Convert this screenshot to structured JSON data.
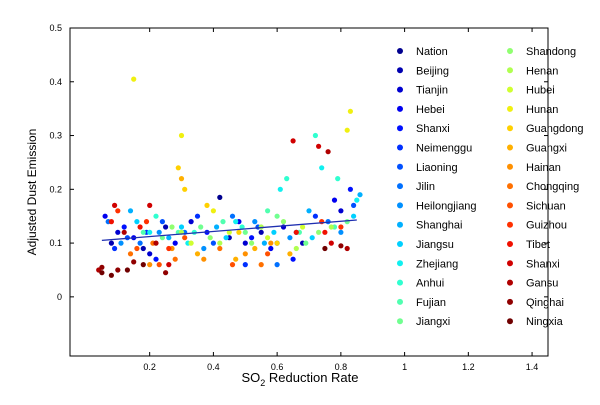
{
  "chart_data": {
    "type": "scatter",
    "xlabel_main": "SO",
    "xlabel_sub": "2",
    "xlabel_rest": " Reduction Rate",
    "ylabel": "Adjusted Dust Emission",
    "xlim": [
      -0.05,
      1.45
    ],
    "ylim": [
      -0.11,
      0.5
    ],
    "xticks": [
      {
        "v": 0.2,
        "label": "0.2"
      },
      {
        "v": 0.4,
        "label": "0.4"
      },
      {
        "v": 0.6,
        "label": "0.6"
      },
      {
        "v": 0.8,
        "label": "0.8"
      },
      {
        "v": 1.0,
        "label": "1"
      },
      {
        "v": 1.2,
        "label": "1.2"
      },
      {
        "v": 1.4,
        "label": "1.4"
      }
    ],
    "yticks": [
      {
        "v": 0.0,
        "label": "0"
      },
      {
        "v": 0.1,
        "label": "0.1"
      },
      {
        "v": 0.2,
        "label": "0.2"
      },
      {
        "v": 0.3,
        "label": "0.3"
      },
      {
        "v": 0.4,
        "label": "0.4"
      },
      {
        "v": 0.5,
        "label": "0.5"
      }
    ],
    "grid": false,
    "legend_position": "right",
    "fit_line": {
      "x": [
        0.05,
        0.85
      ],
      "y": [
        0.105,
        0.143
      ],
      "color": "#1f2fb0"
    },
    "series": [
      {
        "name": "Nation",
        "color": "#00008f",
        "points": [
          [
            0.42,
            0.185
          ]
        ]
      },
      {
        "name": "Beijing",
        "color": "#0000b0",
        "points": [
          [
            0.08,
            0.1
          ],
          [
            0.18,
            0.09
          ],
          [
            0.25,
            0.13
          ],
          [
            0.45,
            0.11
          ],
          [
            0.55,
            0.12
          ],
          [
            0.68,
            0.1
          ]
        ]
      },
      {
        "name": "Tianjin",
        "color": "#0000d0",
        "points": [
          [
            0.1,
            0.12
          ],
          [
            0.2,
            0.08
          ],
          [
            0.33,
            0.14
          ],
          [
            0.5,
            0.1
          ],
          [
            0.62,
            0.13
          ],
          [
            0.8,
            0.16
          ]
        ]
      },
      {
        "name": "Hebei",
        "color": "#0000f0",
        "points": [
          [
            0.06,
            0.15
          ],
          [
            0.15,
            0.11
          ],
          [
            0.28,
            0.1
          ],
          [
            0.48,
            0.14
          ],
          [
            0.58,
            0.09
          ],
          [
            0.78,
            0.18
          ]
        ]
      },
      {
        "name": "Shanxi",
        "color": "#0010ff",
        "points": [
          [
            0.12,
            0.13
          ],
          [
            0.22,
            0.07
          ],
          [
            0.38,
            0.12
          ],
          [
            0.52,
            0.11
          ],
          [
            0.65,
            0.07
          ],
          [
            0.83,
            0.2
          ]
        ]
      },
      {
        "name": "Neimenggu",
        "color": "#0030ff",
        "points": [
          [
            0.09,
            0.09
          ],
          [
            0.19,
            0.12
          ],
          [
            0.35,
            0.15
          ],
          [
            0.5,
            0.06
          ],
          [
            0.6,
            0.1
          ],
          [
            0.72,
            0.15
          ]
        ]
      },
      {
        "name": "Liaoning",
        "color": "#0050ff",
        "points": [
          [
            0.13,
            0.11
          ],
          [
            0.24,
            0.14
          ],
          [
            0.4,
            0.1
          ],
          [
            0.54,
            0.13
          ],
          [
            0.66,
            0.12
          ],
          [
            0.84,
            0.17
          ]
        ]
      },
      {
        "name": "Jilin",
        "color": "#0070ff",
        "points": [
          [
            0.07,
            0.14
          ],
          [
            0.17,
            0.1
          ],
          [
            0.31,
            0.12
          ],
          [
            0.46,
            0.15
          ],
          [
            0.6,
            0.06
          ],
          [
            0.76,
            0.14
          ]
        ]
      },
      {
        "name": "Heilongjiang",
        "color": "#0090ff",
        "points": [
          [
            0.11,
            0.1
          ],
          [
            0.23,
            0.12
          ],
          [
            0.37,
            0.09
          ],
          [
            0.53,
            0.14
          ],
          [
            0.64,
            0.11
          ],
          [
            0.8,
            0.12
          ]
        ]
      },
      {
        "name": "Shanghai",
        "color": "#00b0ff",
        "points": [
          [
            0.14,
            0.16
          ],
          [
            0.26,
            0.11
          ],
          [
            0.41,
            0.13
          ],
          [
            0.56,
            0.1
          ],
          [
            0.7,
            0.16
          ],
          [
            0.86,
            0.19
          ]
        ]
      },
      {
        "name": "Jiangsu",
        "color": "#00d0ff",
        "points": [
          [
            0.16,
            0.14
          ],
          [
            0.3,
            0.13
          ],
          [
            0.44,
            0.11
          ],
          [
            0.59,
            0.12
          ],
          [
            0.71,
            0.11
          ],
          [
            0.84,
            0.15
          ]
        ]
      },
      {
        "name": "Zhejiang",
        "color": "#10f0f0",
        "points": [
          [
            0.2,
            0.12
          ],
          [
            0.32,
            0.1
          ],
          [
            0.47,
            0.14
          ],
          [
            0.61,
            0.2
          ],
          [
            0.74,
            0.24
          ],
          [
            0.85,
            0.18
          ]
        ]
      },
      {
        "name": "Anhui",
        "color": "#30ffd0",
        "points": [
          [
            0.22,
            0.15
          ],
          [
            0.34,
            0.12
          ],
          [
            0.49,
            0.13
          ],
          [
            0.63,
            0.22
          ],
          [
            0.72,
            0.3
          ],
          [
            0.79,
            0.22
          ]
        ]
      },
      {
        "name": "Fujian",
        "color": "#50ffb0",
        "points": [
          [
            0.18,
            0.12
          ],
          [
            0.29,
            0.12
          ],
          [
            0.43,
            0.14
          ],
          [
            0.57,
            0.16
          ],
          [
            0.67,
            0.12
          ],
          [
            0.78,
            0.13
          ]
        ]
      },
      {
        "name": "Jiangxi",
        "color": "#70ff90",
        "points": [
          [
            0.24,
            0.11
          ],
          [
            0.36,
            0.13
          ],
          [
            0.5,
            0.12
          ],
          [
            0.6,
            0.15
          ],
          [
            0.69,
            0.1
          ],
          [
            0.82,
            0.14
          ]
        ]
      },
      {
        "name": "Shandong",
        "color": "#90ff70",
        "points": [
          [
            0.27,
            0.13
          ],
          [
            0.39,
            0.11
          ],
          [
            0.52,
            0.1
          ],
          [
            0.62,
            0.14
          ],
          [
            0.73,
            0.12
          ]
        ]
      },
      {
        "name": "Henan",
        "color": "#b0ff50",
        "points": [
          [
            0.3,
            0.12
          ],
          [
            0.42,
            0.1
          ],
          [
            0.55,
            0.13
          ],
          [
            0.66,
            0.09
          ],
          [
            0.77,
            0.13
          ]
        ]
      },
      {
        "name": "Hubei",
        "color": "#d0ff30",
        "points": [
          [
            0.33,
            0.1
          ],
          [
            0.45,
            0.12
          ],
          [
            0.57,
            0.11
          ],
          [
            0.68,
            0.13
          ]
        ]
      },
      {
        "name": "Hunan",
        "color": "#f0f010",
        "points": [
          [
            0.15,
            0.405
          ],
          [
            0.3,
            0.3
          ],
          [
            0.4,
            0.16
          ],
          [
            0.82,
            0.31
          ],
          [
            0.83,
            0.345
          ]
        ]
      },
      {
        "name": "Guangdong",
        "color": "#ffd000",
        "points": [
          [
            0.29,
            0.24
          ],
          [
            0.31,
            0.2
          ],
          [
            0.38,
            0.17
          ],
          [
            0.48,
            0.12
          ],
          [
            0.6,
            0.1
          ]
        ]
      },
      {
        "name": "Guangxi",
        "color": "#ffb000",
        "points": [
          [
            0.3,
            0.22
          ],
          [
            0.35,
            0.08
          ],
          [
            0.47,
            0.07
          ],
          [
            0.53,
            0.09
          ],
          [
            0.64,
            0.08
          ]
        ]
      },
      {
        "name": "Hainan",
        "color": "#ff9000",
        "points": [
          [
            0.2,
            0.06
          ],
          [
            0.27,
            0.09
          ],
          [
            0.37,
            0.07
          ],
          [
            0.5,
            0.08
          ],
          [
            0.58,
            0.1
          ]
        ]
      },
      {
        "name": "Chongqing",
        "color": "#ff7000",
        "points": [
          [
            0.14,
            0.08
          ],
          [
            0.21,
            0.1
          ],
          [
            0.28,
            0.07
          ],
          [
            0.42,
            0.09
          ],
          [
            0.55,
            0.06
          ]
        ]
      },
      {
        "name": "Sichuan",
        "color": "#ff5000",
        "points": [
          [
            0.16,
            0.09
          ],
          [
            0.23,
            0.06
          ],
          [
            0.31,
            0.11
          ],
          [
            0.46,
            0.06
          ],
          [
            0.57,
            0.08
          ]
        ]
      },
      {
        "name": "Guizhou",
        "color": "#ff3000",
        "points": [
          [
            0.1,
            0.16
          ],
          [
            0.19,
            0.14
          ],
          [
            0.26,
            0.09
          ],
          [
            0.74,
            0.14
          ],
          [
            0.8,
            0.13
          ]
        ]
      },
      {
        "name": "Tibet",
        "color": "#f01000",
        "points": [
          [
            0.08,
            0.14
          ],
          [
            0.17,
            0.13
          ],
          [
            0.66,
            0.12
          ],
          [
            0.75,
            0.12
          ]
        ]
      },
      {
        "name": "Shanxi",
        "color": "#d00000",
        "points": [
          [
            0.09,
            0.17
          ],
          [
            0.2,
            0.17
          ],
          [
            0.26,
            0.06
          ],
          [
            0.65,
            0.29
          ],
          [
            0.73,
            0.28
          ],
          [
            0.77,
            0.1
          ]
        ]
      },
      {
        "name": "Gansu",
        "color": "#b00000",
        "points": [
          [
            0.04,
            0.05
          ],
          [
            0.12,
            0.12
          ],
          [
            0.22,
            0.1
          ],
          [
            0.76,
            0.27
          ],
          [
            0.82,
            0.09
          ]
        ]
      },
      {
        "name": "Qinghai",
        "color": "#900000",
        "points": [
          [
            0.05,
            0.055
          ],
          [
            0.1,
            0.05
          ],
          [
            0.15,
            0.065
          ],
          [
            0.25,
            0.045
          ],
          [
            0.8,
            0.095
          ]
        ]
      },
      {
        "name": "Ningxia",
        "color": "#700000",
        "points": [
          [
            0.05,
            0.045
          ],
          [
            0.08,
            0.04
          ],
          [
            0.13,
            0.05
          ],
          [
            0.18,
            0.06
          ],
          [
            0.75,
            0.09
          ]
        ]
      }
    ]
  }
}
